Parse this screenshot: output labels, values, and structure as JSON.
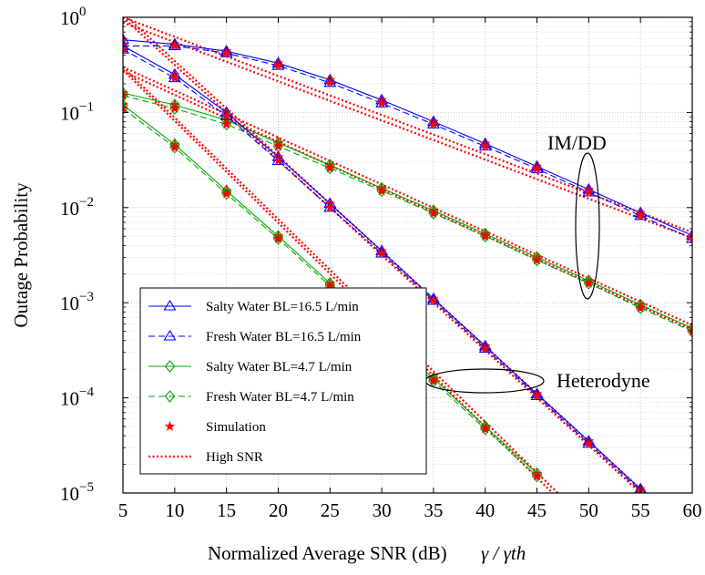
{
  "chart_data": {
    "type": "line",
    "xlabel": "Normalized Average SNR (dB)",
    "xlabel_math": "γ / γth",
    "ylabel": "Outage Probability",
    "xlim": [
      5,
      60
    ],
    "ylim": [
      1e-05,
      1
    ],
    "yscale": "log",
    "x_ticks": [
      5,
      10,
      15,
      20,
      25,
      30,
      35,
      40,
      45,
      50,
      55,
      60
    ],
    "y_tick_exponents": [
      "0",
      "−1",
      "−2",
      "−3",
      "−4",
      "−5"
    ],
    "grid": "dotted",
    "legend_position": "bottom-left",
    "x": [
      5,
      10,
      15,
      20,
      25,
      30,
      35,
      40,
      45,
      50,
      55,
      60
    ],
    "series": [
      {
        "name": "Salty Water BL=16.5 L/min",
        "group": "IM/DD",
        "color": "#0000ff",
        "style": "solid",
        "marker": "triangle",
        "values": [
          0.58,
          0.52,
          0.44,
          0.33,
          0.22,
          0.135,
          0.08,
          0.047,
          0.027,
          0.0155,
          0.0088,
          0.0051
        ]
      },
      {
        "name": "Fresh Water BL=16.5 L/min",
        "group": "IM/DD",
        "color": "#0000ff",
        "style": "dashed",
        "marker": "triangle",
        "values": [
          0.5,
          0.5,
          0.42,
          0.31,
          0.205,
          0.125,
          0.075,
          0.044,
          0.0255,
          0.0145,
          0.0082,
          0.0047
        ]
      },
      {
        "name": "Salty Water BL=4.7 L/min",
        "group": "IM/DD",
        "color": "#00aa00",
        "style": "solid",
        "marker": "diamond",
        "values": [
          0.16,
          0.12,
          0.083,
          0.048,
          0.028,
          0.016,
          0.0093,
          0.0053,
          0.003,
          0.0017,
          0.00095,
          0.00054
        ]
      },
      {
        "name": "Fresh Water BL=4.7 L/min",
        "group": "IM/DD",
        "color": "#00aa00",
        "style": "dashed",
        "marker": "diamond",
        "values": [
          0.15,
          0.11,
          0.075,
          0.044,
          0.026,
          0.015,
          0.0087,
          0.005,
          0.0028,
          0.0016,
          0.00088,
          0.0005
        ]
      },
      {
        "name": "Salty Water BL=16.5 L/min",
        "group": "Heterodyne",
        "color": "#0000ff",
        "style": "solid",
        "marker": "triangle",
        "values": [
          0.5,
          0.25,
          0.1,
          0.034,
          0.011,
          0.0035,
          0.0011,
          0.00035,
          0.00011,
          3.5e-05,
          1.1e-05,
          null
        ]
      },
      {
        "name": "Fresh Water BL=16.5 L/min",
        "group": "Heterodyne",
        "color": "#0000ff",
        "style": "dashed",
        "marker": "triangle",
        "values": [
          0.46,
          0.23,
          0.092,
          0.031,
          0.01,
          0.0033,
          0.00105,
          0.00033,
          0.000105,
          3.3e-05,
          1.05e-05,
          null
        ]
      },
      {
        "name": "Salty Water BL=4.7 L/min",
        "group": "Heterodyne",
        "color": "#00aa00",
        "style": "solid",
        "marker": "diamond",
        "values": [
          0.12,
          0.046,
          0.015,
          0.005,
          0.0016,
          0.0005,
          0.00016,
          5e-05,
          1.6e-05,
          null,
          null,
          null
        ]
      },
      {
        "name": "Fresh Water BL=4.7 L/min",
        "group": "Heterodyne",
        "color": "#00aa00",
        "style": "dashed",
        "marker": "diamond",
        "values": [
          0.11,
          0.043,
          0.014,
          0.0047,
          0.0015,
          0.00047,
          0.00015,
          4.7e-05,
          1.5e-05,
          null,
          null,
          null
        ]
      }
    ],
    "high_snr": [
      {
        "x": [
          5,
          60
        ],
        "values": [
          1.0,
          0.0055
        ]
      },
      {
        "x": [
          5,
          60
        ],
        "values": [
          0.88,
          0.0048
        ]
      },
      {
        "x": [
          5,
          60
        ],
        "values": [
          0.3,
          0.00058
        ]
      },
      {
        "x": [
          5,
          60
        ],
        "values": [
          0.27,
          0.00052
        ]
      },
      {
        "x": [
          5,
          55
        ],
        "values": [
          1.1,
          1.1e-05
        ]
      },
      {
        "x": [
          5,
          55
        ],
        "values": [
          1.0,
          1e-05
        ]
      },
      {
        "x": [
          5,
          47
        ],
        "values": [
          0.3,
          1e-05
        ]
      },
      {
        "x": [
          5,
          46.5
        ],
        "values": [
          0.28,
          1e-05
        ]
      }
    ],
    "legend": [
      {
        "label": "Salty Water BL=16.5 L/min",
        "color": "#0000ff",
        "style": "solid",
        "marker": "triangle"
      },
      {
        "label": "Fresh Water BL=16.5 L/min",
        "color": "#0000ff",
        "style": "dashed",
        "marker": "triangle"
      },
      {
        "label": "Salty Water BL=4.7 L/min",
        "color": "#00aa00",
        "style": "solid",
        "marker": "diamond"
      },
      {
        "label": "Fresh Water BL=4.7 L/min",
        "color": "#00aa00",
        "style": "dashed",
        "marker": "diamond"
      },
      {
        "label": "Simulation",
        "color": "#ff0000",
        "style": "none",
        "marker": "star"
      },
      {
        "label": "High SNR",
        "color": "#ff0000",
        "style": "dotted",
        "marker": "none"
      }
    ],
    "annotations": [
      {
        "text": "IM/DD",
        "x": 50,
        "y": 0.04
      },
      {
        "text": "Heterodyne",
        "x": 53.5,
        "y": 0.00015
      }
    ]
  }
}
